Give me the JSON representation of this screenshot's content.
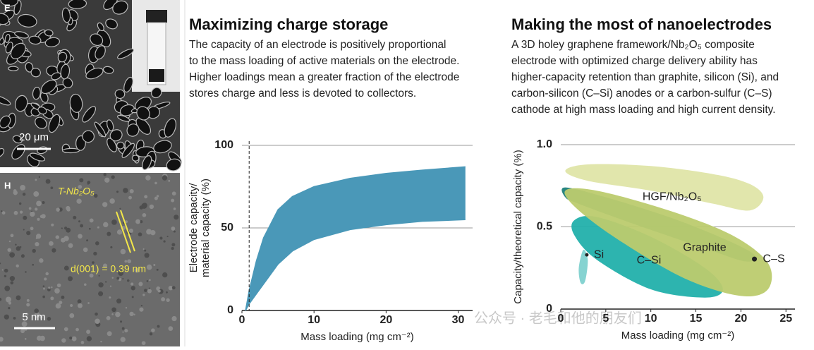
{
  "images": {
    "top_label": "E",
    "top_scale": "20 μm",
    "bottom_label": "H",
    "bottom_phase": "T-Nb₂O₅",
    "bottom_spacing": "d(001) = 0.39 nm",
    "bottom_scale": "5 nm"
  },
  "watermark": "公众号 · 老毛和他的朋友们",
  "chart_data": [
    {
      "type": "range_area",
      "title": "Maximizing charge storage",
      "description": [
        "The capacity of an electrode is positively proportional",
        "to the mass loading of active materials on the electrode.",
        "Higher loadings mean a greater fraction of the electrode",
        "stores charge and less is devoted to collectors."
      ],
      "x": [
        0.5,
        1,
        2,
        3,
        5,
        7,
        10,
        15,
        20,
        25,
        31
      ],
      "series": [
        {
          "values": [
            0,
            12,
            30,
            44,
            61,
            69,
            75,
            80,
            83,
            85,
            87
          ]
        },
        {
          "values": [
            0,
            4,
            10,
            16,
            28,
            36,
            43,
            49,
            52,
            54,
            55
          ]
        }
      ],
      "color": "#4a98b8",
      "reference_x": 1,
      "xlim": [
        0,
        32
      ],
      "xticks": [
        0,
        10,
        20,
        30
      ],
      "ylim": [
        0,
        100
      ],
      "yticks": [
        0,
        50,
        100
      ],
      "grid": true,
      "xlabel": "Mass loading (mg cm⁻²)",
      "ylabel": [
        "Electrode capacity/",
        "material capacity (%)"
      ]
    },
    {
      "type": "region",
      "title": "Making the most of nanoelectrodes",
      "description": [
        "A 3D holey graphene framework/Nb₂O₅ composite",
        "electrode with optimized charge delivery ability has",
        "higher-capacity retention than graphite, silicon (Si), and",
        "carbon-silicon (C–Si) anodes or a carbon-sulfur (C–S)",
        "cathode at high mass loading and high current density."
      ],
      "series": [
        {
          "name": "HGF/Nb₂O₅",
          "color": "#dfe5a8",
          "x": [
            0.5,
            3,
            10,
            17,
            21,
            22.5,
            21,
            17,
            10,
            3
          ],
          "values": [
            0.84,
            0.88,
            0.87,
            0.82,
            0.76,
            0.68,
            0.6,
            0.64,
            0.72,
            0.78
          ]
        },
        {
          "name": "C–S",
          "color": "#1d7f7a",
          "x": [
            0.5,
            5,
            12,
            18,
            21.5,
            20.5,
            16,
            8,
            2,
            0.5
          ],
          "values": [
            0.74,
            0.68,
            0.56,
            0.43,
            0.33,
            0.29,
            0.37,
            0.52,
            0.64,
            0.68
          ]
        },
        {
          "name": "C–Si",
          "color": "#22b0ab",
          "x": [
            1.5,
            4,
            10,
            16,
            18,
            16,
            10,
            4,
            1.5
          ],
          "values": [
            0.54,
            0.56,
            0.44,
            0.25,
            0.12,
            0.07,
            0.12,
            0.3,
            0.45
          ]
        },
        {
          "name": "Graphite",
          "color": "#bccb6e",
          "x": [
            0.5,
            4,
            12,
            19,
            23,
            23,
            20,
            14,
            7,
            2
          ],
          "values": [
            0.72,
            0.72,
            0.6,
            0.45,
            0.28,
            0.12,
            0.08,
            0.18,
            0.4,
            0.6
          ]
        },
        {
          "name": "Si",
          "color": "#7fd1cf",
          "x": [
            2.5,
            3,
            2.7,
            2.2,
            2
          ],
          "values": [
            0.36,
            0.3,
            0.17,
            0.16,
            0.25
          ]
        }
      ],
      "xlim": [
        0,
        26
      ],
      "xticks": [
        0,
        5,
        10,
        15,
        20,
        25
      ],
      "ylim": [
        0,
        1
      ],
      "yticks": [
        0,
        {
          "value": 0.5,
          "label": "0.5"
        },
        {
          "value": 1,
          "label": "1.0"
        }
      ],
      "grid": true,
      "xlabel": "Mass loading (mg cm⁻²)",
      "ylabel": "Capacity/theoretical capacity (%)"
    }
  ]
}
